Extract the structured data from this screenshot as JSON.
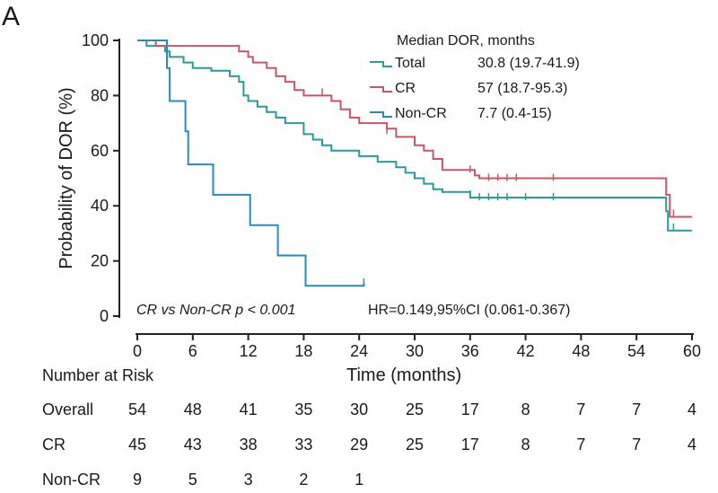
{
  "panel_label": "A",
  "chart_data": {
    "type": "line",
    "title": "",
    "xlabel": "Time (months)",
    "ylabel": "Probability of DOR (%)",
    "xlim": [
      0,
      60
    ],
    "ylim": [
      0,
      100
    ],
    "xticks": [
      0,
      6,
      12,
      18,
      24,
      30,
      36,
      42,
      48,
      54,
      60
    ],
    "yticks": [
      0,
      20,
      40,
      60,
      80,
      100
    ],
    "x_tick_labels": [
      "0",
      "6",
      "12",
      "18",
      "24",
      "30",
      "36",
      "42",
      "48",
      "54",
      "60"
    ],
    "y_tick_labels": [
      "0",
      "20",
      "40",
      "60",
      "80",
      "100"
    ],
    "legend": {
      "title": "Median DOR, months",
      "placement": "top-right",
      "entries": [
        {
          "name": "Total",
          "value": "30.8 (19.7-41.9)",
          "color": "#2a9a9a"
        },
        {
          "name": "CR",
          "value": "57 (18.7-95.3)",
          "color": "#c8566a"
        },
        {
          "name": "Non-CR",
          "value": "7.7 (0.4-15)",
          "color": "#2a8ab8"
        }
      ]
    },
    "annotations": {
      "p_value": "CR vs Non-CR p < 0.001",
      "hazard_ratio": "HR=0.149,95%CI (0.061-0.367)"
    },
    "series": [
      {
        "name": "Total",
        "color": "#2a9a9a",
        "points": [
          [
            0,
            100
          ],
          [
            1,
            98
          ],
          [
            3,
            96
          ],
          [
            3.5,
            94
          ],
          [
            5,
            92
          ],
          [
            6,
            90
          ],
          [
            8,
            89
          ],
          [
            10,
            87
          ],
          [
            11,
            85
          ],
          [
            11.5,
            80
          ],
          [
            12,
            78
          ],
          [
            13,
            76
          ],
          [
            14,
            74
          ],
          [
            15,
            72
          ],
          [
            16,
            70
          ],
          [
            18,
            66
          ],
          [
            19,
            64
          ],
          [
            20,
            62
          ],
          [
            21,
            60
          ],
          [
            24,
            58
          ],
          [
            26,
            56
          ],
          [
            28,
            54
          ],
          [
            29,
            52
          ],
          [
            30,
            50
          ],
          [
            31,
            48
          ],
          [
            32,
            46
          ],
          [
            33,
            45
          ],
          [
            36,
            43
          ],
          [
            42,
            43
          ],
          [
            48,
            43
          ],
          [
            57,
            43
          ],
          [
            57.2,
            38
          ],
          [
            57.4,
            31
          ],
          [
            60,
            31
          ]
        ],
        "censored": [
          [
            36,
            44
          ],
          [
            37,
            43
          ],
          [
            38,
            43
          ],
          [
            39,
            43
          ],
          [
            40,
            43
          ],
          [
            42,
            43
          ],
          [
            45,
            43
          ],
          [
            58,
            32
          ]
        ]
      },
      {
        "name": "CR",
        "color": "#c8566a",
        "points": [
          [
            0,
            100
          ],
          [
            2,
            98
          ],
          [
            6,
            98
          ],
          [
            11,
            96
          ],
          [
            12,
            94
          ],
          [
            12.5,
            92
          ],
          [
            14,
            90
          ],
          [
            15,
            87
          ],
          [
            16,
            85
          ],
          [
            17,
            82
          ],
          [
            18,
            80
          ],
          [
            20,
            80
          ],
          [
            21,
            78
          ],
          [
            22,
            75
          ],
          [
            23,
            72
          ],
          [
            24,
            70
          ],
          [
            27,
            68
          ],
          [
            28,
            65
          ],
          [
            30,
            62
          ],
          [
            31,
            60
          ],
          [
            32,
            57
          ],
          [
            33,
            53
          ],
          [
            36,
            53
          ],
          [
            36.5,
            51
          ],
          [
            37,
            50
          ],
          [
            57,
            50
          ],
          [
            57.2,
            44
          ],
          [
            57.6,
            36
          ],
          [
            60,
            36
          ]
        ],
        "censored": [
          [
            20,
            81
          ],
          [
            27,
            67
          ],
          [
            36,
            53
          ],
          [
            38,
            50
          ],
          [
            39,
            50
          ],
          [
            40,
            50
          ],
          [
            41,
            50
          ],
          [
            45,
            50
          ],
          [
            58,
            37
          ]
        ]
      },
      {
        "name": "Non-CR",
        "color": "#2a8ab8",
        "points": [
          [
            0,
            100
          ],
          [
            3,
            100
          ],
          [
            3.2,
            90
          ],
          [
            3.5,
            78
          ],
          [
            5,
            78
          ],
          [
            5.2,
            67
          ],
          [
            5.5,
            55
          ],
          [
            8,
            55
          ],
          [
            8.2,
            44
          ],
          [
            12,
            44
          ],
          [
            12.2,
            33
          ],
          [
            15,
            33
          ],
          [
            15.2,
            22
          ],
          [
            18,
            22
          ],
          [
            18.2,
            11
          ],
          [
            24.5,
            11
          ],
          [
            24.5,
            12
          ]
        ],
        "censored": [
          [
            24.5,
            12
          ]
        ]
      }
    ]
  },
  "risk_table": {
    "title": "Number at Risk",
    "rows": [
      {
        "label": "Overall",
        "values": [
          "54",
          "48",
          "41",
          "35",
          "30",
          "25",
          "17",
          "8",
          "7",
          "7",
          "4"
        ]
      },
      {
        "label": "CR",
        "values": [
          "45",
          "43",
          "38",
          "33",
          "29",
          "25",
          "17",
          "8",
          "7",
          "7",
          "4"
        ]
      },
      {
        "label": "Non-CR",
        "values": [
          "9",
          "5",
          "3",
          "2",
          "1"
        ]
      }
    ]
  }
}
